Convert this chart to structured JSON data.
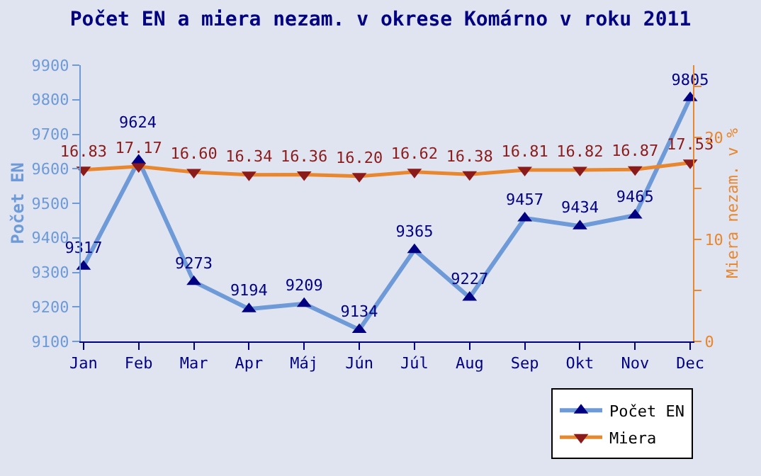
{
  "chart_data": {
    "type": "line",
    "title": "Počet EN a miera nezam. v okrese Komárno v roku 2011",
    "categories": [
      "Jan",
      "Feb",
      "Mar",
      "Apr",
      "Máj",
      "Jún",
      "Júl",
      "Aug",
      "Sep",
      "Okt",
      "Nov",
      "Dec"
    ],
    "series": [
      {
        "name": "Počet EN",
        "color": "#6f9ad8",
        "values": [
          9317,
          9624,
          9273,
          9194,
          9209,
          9134,
          9365,
          9227,
          9457,
          9434,
          9465,
          9805
        ],
        "data_labels": true
      },
      {
        "name": "Miera",
        "color": "#e8872e",
        "axis": "y2",
        "values": [
          16.83,
          17.17,
          16.6,
          16.34,
          16.36,
          16.2,
          16.62,
          16.38,
          16.81,
          16.82,
          16.87,
          17.53
        ],
        "value_labels": [
          "16.83",
          "17.17",
          "16.60",
          "16.34",
          "16.36",
          "16.20",
          "16.62",
          "16.38",
          "16.81",
          "16.82",
          "16.87",
          "17.53"
        ]
      }
    ],
    "ylabel": "Počet EN",
    "y2label": "Miera nezam. v %",
    "ylim": [
      9100,
      9900
    ],
    "yticks": [
      9100,
      9200,
      9300,
      9400,
      9500,
      9600,
      9700,
      9800,
      9900
    ],
    "y2lim": [
      0,
      27.1
    ],
    "y2ticks": [
      0,
      {
        "value": 5,
        "label": null
      },
      10,
      {
        "value": 15,
        "label": null
      },
      20,
      {
        "value": 25,
        "label": null
      }
    ],
    "marker": "triangle",
    "grid": false,
    "legend": "bottom right"
  }
}
